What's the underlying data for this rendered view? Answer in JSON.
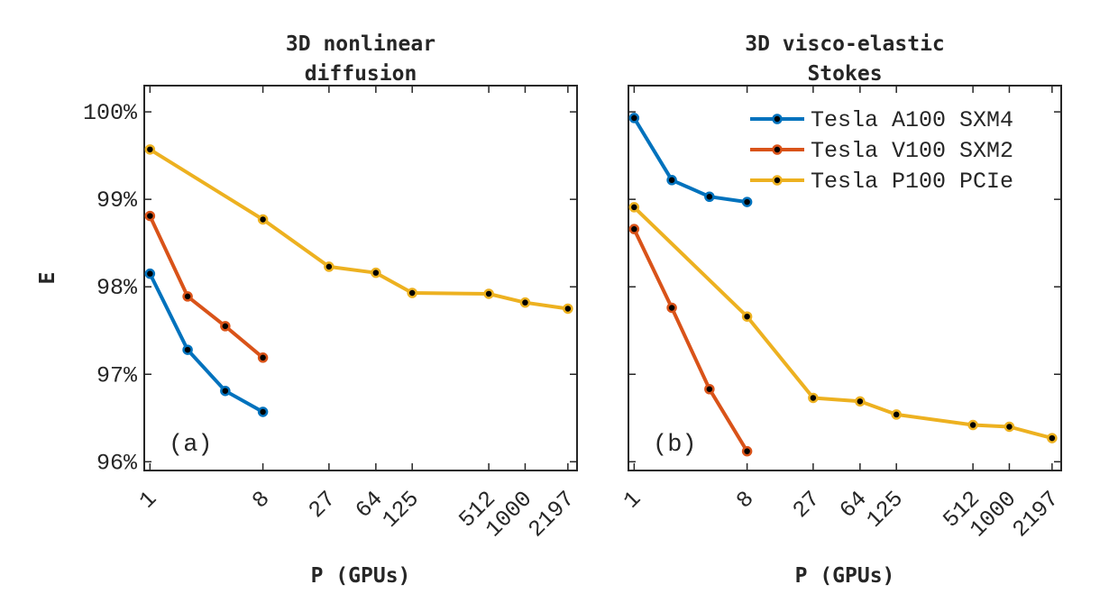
{
  "chart_data": [
    {
      "type": "line",
      "panel_label": "(a)",
      "title_lines": [
        "3D nonlinear",
        "diffusion"
      ],
      "xlabel": "P (GPUs)",
      "ylabel": "E",
      "xscale": "log",
      "xlim": [
        0.9,
        2600
      ],
      "ylim": [
        95.9,
        100.3
      ],
      "x_ticks": [
        1,
        8,
        27,
        64,
        125,
        512,
        1000,
        2197
      ],
      "x_tick_labels": [
        "1",
        "8",
        "27",
        "64",
        "125",
        "512",
        "1000",
        "2197"
      ],
      "y_ticks": [
        96,
        97,
        98,
        99,
        100
      ],
      "y_tick_labels": [
        "96%",
        "97%",
        "98%",
        "99%",
        "100%"
      ],
      "legend": false,
      "series": [
        {
          "name": "Tesla A100 SXM4",
          "color": "#0072BD",
          "x": [
            1,
            2,
            4,
            8
          ],
          "y": [
            98.15,
            97.28,
            96.81,
            96.57
          ]
        },
        {
          "name": "Tesla V100 SXM2",
          "color": "#D95319",
          "x": [
            1,
            2,
            4,
            8
          ],
          "y": [
            98.81,
            97.89,
            97.55,
            97.19
          ]
        },
        {
          "name": "Tesla P100 PCIe",
          "color": "#EDB120",
          "x": [
            1,
            8,
            27,
            64,
            125,
            512,
            1000,
            2197
          ],
          "y": [
            99.57,
            98.77,
            98.23,
            98.16,
            97.93,
            97.92,
            97.82,
            97.75
          ]
        }
      ]
    },
    {
      "type": "line",
      "panel_label": "(b)",
      "title_lines": [
        "3D visco-elastic",
        "Stokes"
      ],
      "xlabel": "P (GPUs)",
      "xscale": "log",
      "xlim": [
        0.9,
        2600
      ],
      "ylim": [
        95.9,
        100.3
      ],
      "x_ticks": [
        1,
        8,
        27,
        64,
        125,
        512,
        1000,
        2197
      ],
      "x_tick_labels": [
        "1",
        "8",
        "27",
        "64",
        "125",
        "512",
        "1000",
        "2197"
      ],
      "y_ticks": [
        96,
        97,
        98,
        99,
        100
      ],
      "legend": true,
      "legend_position": "top-right",
      "series": [
        {
          "name": "Tesla A100 SXM4",
          "color": "#0072BD",
          "x": [
            1,
            2,
            4,
            8
          ],
          "y": [
            99.93,
            99.22,
            99.03,
            98.97
          ]
        },
        {
          "name": "Tesla V100 SXM2",
          "color": "#D95319",
          "x": [
            1,
            2,
            4,
            8
          ],
          "y": [
            98.66,
            97.76,
            96.83,
            96.12
          ]
        },
        {
          "name": "Tesla P100 PCIe",
          "color": "#EDB120",
          "x": [
            1,
            8,
            27,
            64,
            125,
            512,
            1000,
            2197
          ],
          "y": [
            98.91,
            97.66,
            96.73,
            96.69,
            96.54,
            96.42,
            96.4,
            96.27
          ]
        }
      ]
    }
  ]
}
